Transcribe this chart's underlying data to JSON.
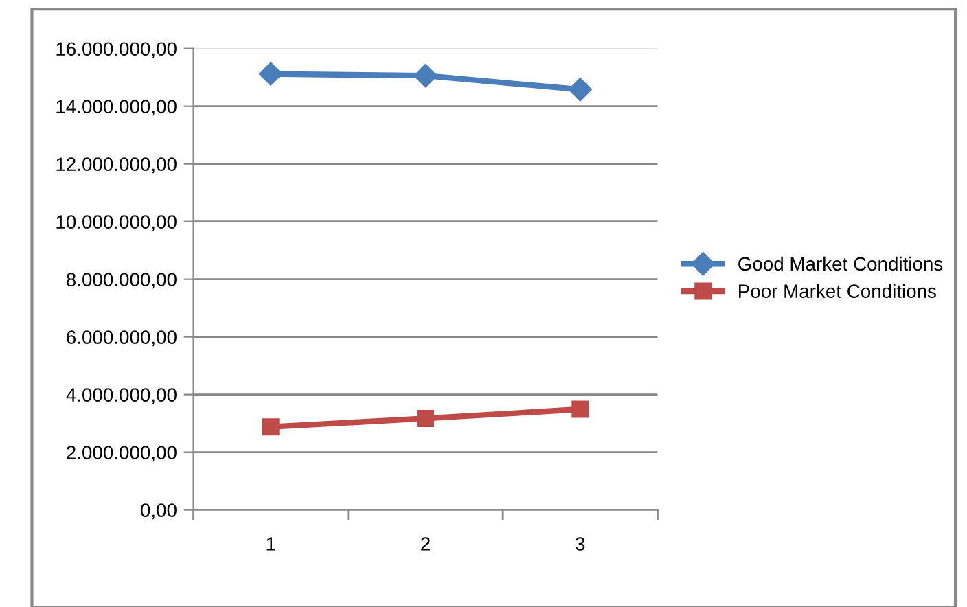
{
  "chart_data": {
    "type": "line",
    "categories": [
      "1",
      "2",
      "3"
    ],
    "series": [
      {
        "name": "Good Market Conditions",
        "color": "#4a7ebb",
        "marker": "diamond",
        "values": [
          15120000,
          15060000,
          14580000
        ]
      },
      {
        "name": "Poor Market Conditions",
        "color": "#be4b48",
        "marker": "square",
        "values": [
          2880000,
          3170000,
          3490000
        ]
      }
    ],
    "ylim": [
      0,
      16000000
    ],
    "yticks": [
      {
        "value": 0,
        "label": "0,00"
      },
      {
        "value": 2000000,
        "label": "2.000.000,00"
      },
      {
        "value": 4000000,
        "label": "4.000.000,00"
      },
      {
        "value": 6000000,
        "label": "6.000.000,00"
      },
      {
        "value": 8000000,
        "label": "8.000.000,00"
      },
      {
        "value": 10000000,
        "label": "10.000.000,00"
      },
      {
        "value": 12000000,
        "label": "12.000.000,00"
      },
      {
        "value": 14000000,
        "label": "14.000.000,00"
      },
      {
        "value": 16000000,
        "label": "16.000.000,00"
      }
    ],
    "grid": "y",
    "legend": "right",
    "line_style": "solid"
  }
}
